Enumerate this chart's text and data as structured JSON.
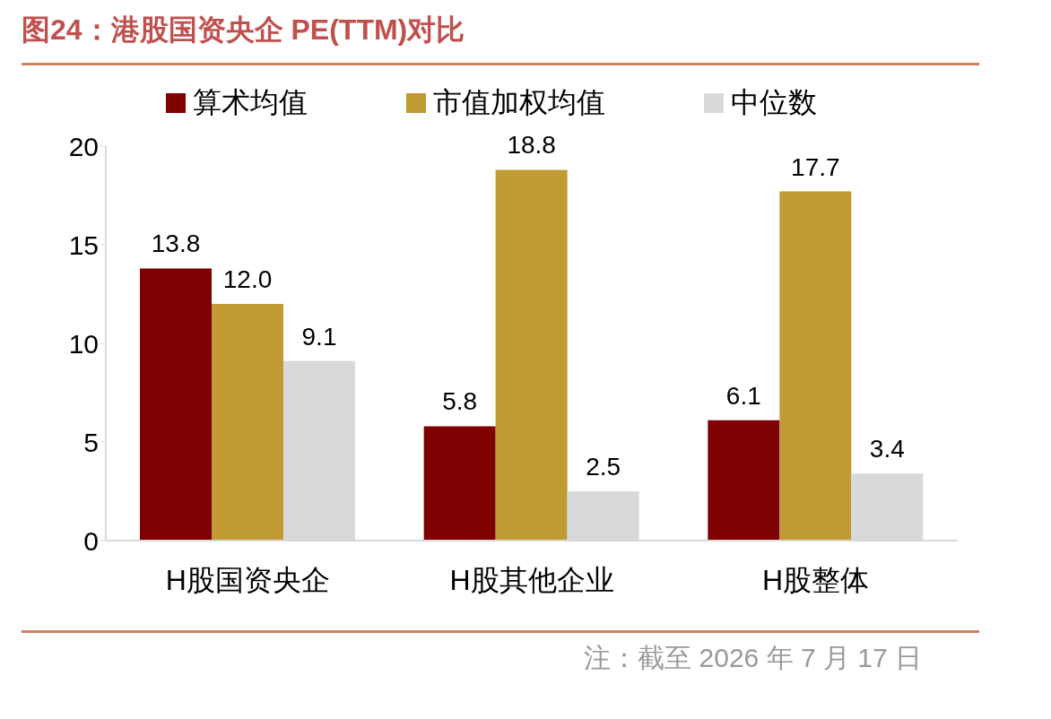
{
  "chart_data": {
    "type": "bar",
    "title": "图24：港股国资央企 PE(TTM)对比",
    "categories": [
      "H股国资央企",
      "H股其他企业",
      "H股整体"
    ],
    "series": [
      {
        "name": "算术均值",
        "color": "#7f0000",
        "values": [
          13.8,
          5.8,
          6.1
        ],
        "value_labels": [
          "13.8",
          "5.8",
          "6.1"
        ]
      },
      {
        "name": "市值加权均值",
        "color": "#c09a33",
        "values": [
          12.0,
          18.8,
          17.7
        ],
        "value_labels": [
          "12.0",
          "18.8",
          "17.7"
        ]
      },
      {
        "name": "中位数",
        "color": "#d9d9d9",
        "values": [
          9.1,
          2.5,
          3.4
        ],
        "value_labels": [
          "9.1",
          "2.5",
          "3.4"
        ]
      }
    ],
    "ylim": [
      0,
      20
    ],
    "yticks": [
      0,
      5,
      10,
      15,
      20
    ],
    "grid": false,
    "legend": "top",
    "annotations": [
      "注：截至 2026 年 7 月 17 日"
    ]
  }
}
